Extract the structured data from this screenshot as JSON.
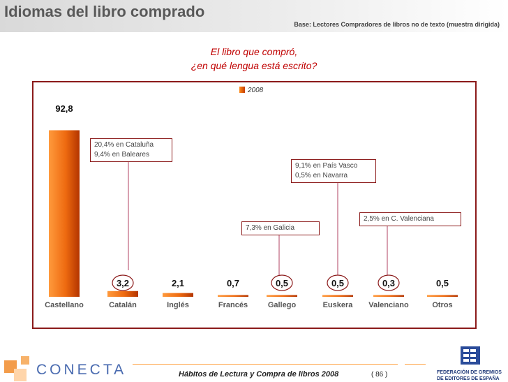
{
  "header": {
    "title": "Idiomas del libro comprado",
    "base_note": "Base: Lectores Compradores de libros no de texto (muestra dirigida)"
  },
  "subtitle": {
    "line1": "El libro que compró,",
    "line2": "¿en qué lengua está escrito?"
  },
  "chart_data": {
    "type": "bar",
    "categories": [
      "Castellano",
      "Catalán",
      "Inglés",
      "Francés",
      "Gallego",
      "Euskera",
      "Valenciano",
      "Otros"
    ],
    "series": [
      {
        "name": "2008",
        "values": [
          92.8,
          3.2,
          2.1,
          0.7,
          0.5,
          0.5,
          0.3,
          0.5
        ]
      }
    ],
    "data_labels": [
      "92,8",
      "3,2",
      "2,1",
      "0,7",
      "0,5",
      "0,5",
      "0,3",
      "0,5"
    ],
    "circled": [
      false,
      true,
      false,
      false,
      true,
      true,
      true,
      false
    ],
    "bar_color": "#e8600a",
    "legend_position": "top-center",
    "title": "",
    "xlabel": "",
    "ylabel": ""
  },
  "callouts": [
    {
      "lines": [
        "20,4% en Cataluña",
        "9,4% en Baleares"
      ]
    },
    {
      "lines": [
        "7,3% en Galicia"
      ]
    },
    {
      "lines": [
        "9,1% en País Vasco",
        "0,5% en Navarra"
      ]
    },
    {
      "lines": [
        "2,5% en C. Valenciana"
      ]
    }
  ],
  "footer": {
    "title": "Hábitos de Lectura y Compra de libros 2008",
    "page": "( 86 )",
    "brand": "CONECTA",
    "federation": [
      "FEDERACIÓN DE GREMIOS",
      "DE EDITORES DE ESPAÑA"
    ]
  },
  "colors": {
    "title_gray": "#595959",
    "subtitle_red": "#c00000",
    "frame": "#8b1a1a",
    "bar_orange": "#e8600a",
    "footer_orange": "#ffa040",
    "conecta_blue": "#4a6bb0",
    "federation_blue": "#223b7a"
  }
}
